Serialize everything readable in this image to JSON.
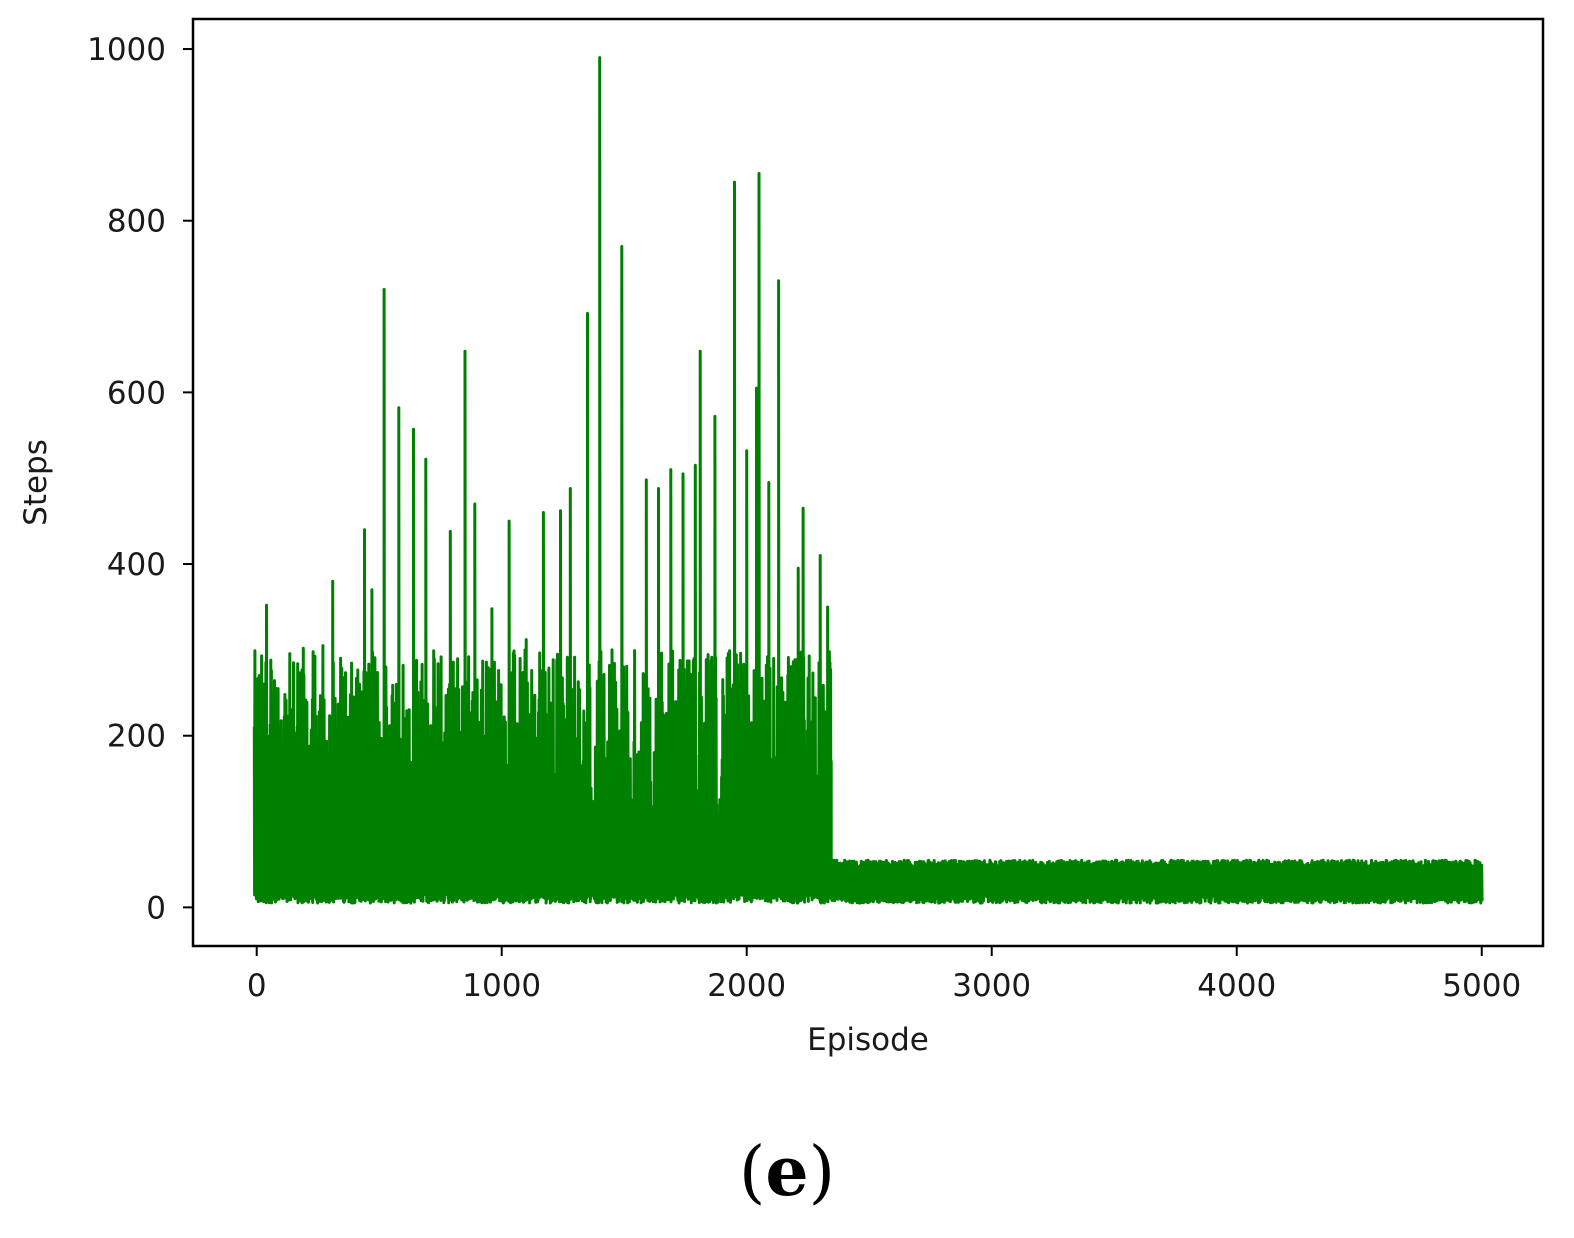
{
  "chart_data": {
    "type": "line",
    "title": "",
    "xlabel": "Episode",
    "ylabel": "Steps",
    "xlim": [
      -260,
      5250
    ],
    "ylim": [
      -45,
      1035
    ],
    "xticks": [
      0,
      1000,
      2000,
      3000,
      4000,
      5000
    ],
    "yticks": [
      0,
      200,
      400,
      600,
      800,
      1000
    ],
    "xtick_labels": [
      "0",
      "1000",
      "2000",
      "3000",
      "4000",
      "5000"
    ],
    "ytick_labels": [
      "0",
      "200",
      "400",
      "600",
      "800",
      "1000"
    ],
    "grid": false,
    "legend": "none",
    "series": [
      {
        "color": "#008000",
        "peaks": [
          {
            "x": 10,
            "y": 270
          },
          {
            "x": 40,
            "y": 352
          },
          {
            "x": 80,
            "y": 255
          },
          {
            "x": 150,
            "y": 285
          },
          {
            "x": 190,
            "y": 302
          },
          {
            "x": 270,
            "y": 305
          },
          {
            "x": 310,
            "y": 380
          },
          {
            "x": 350,
            "y": 268
          },
          {
            "x": 440,
            "y": 440
          },
          {
            "x": 470,
            "y": 370
          },
          {
            "x": 520,
            "y": 720
          },
          {
            "x": 580,
            "y": 582
          },
          {
            "x": 640,
            "y": 557
          },
          {
            "x": 690,
            "y": 522
          },
          {
            "x": 790,
            "y": 438
          },
          {
            "x": 850,
            "y": 648
          },
          {
            "x": 890,
            "y": 470
          },
          {
            "x": 960,
            "y": 348
          },
          {
            "x": 1030,
            "y": 450
          },
          {
            "x": 1100,
            "y": 312
          },
          {
            "x": 1170,
            "y": 460
          },
          {
            "x": 1240,
            "y": 462
          },
          {
            "x": 1280,
            "y": 488
          },
          {
            "x": 1350,
            "y": 692
          },
          {
            "x": 1400,
            "y": 990
          },
          {
            "x": 1450,
            "y": 300
          },
          {
            "x": 1490,
            "y": 770
          },
          {
            "x": 1590,
            "y": 498
          },
          {
            "x": 1640,
            "y": 488
          },
          {
            "x": 1690,
            "y": 510
          },
          {
            "x": 1740,
            "y": 505
          },
          {
            "x": 1790,
            "y": 515
          },
          {
            "x": 1810,
            "y": 648
          },
          {
            "x": 1870,
            "y": 572
          },
          {
            "x": 1950,
            "y": 845
          },
          {
            "x": 2000,
            "y": 532
          },
          {
            "x": 2040,
            "y": 605
          },
          {
            "x": 2050,
            "y": 855
          },
          {
            "x": 2090,
            "y": 495
          },
          {
            "x": 2130,
            "y": 730
          },
          {
            "x": 2210,
            "y": 395
          },
          {
            "x": 2230,
            "y": 465
          },
          {
            "x": 2300,
            "y": 410
          },
          {
            "x": 2330,
            "y": 350
          }
        ],
        "phase1_range": [
          -10,
          2345
        ],
        "phase1_floor": [
          5,
          20
        ],
        "phase1_typical_max": 300,
        "phase2_range": [
          2345,
          5000
        ],
        "phase2_band": [
          5,
          55
        ]
      }
    ]
  },
  "panel_label": {
    "open": "(",
    "letter": "e",
    "close": ")"
  }
}
